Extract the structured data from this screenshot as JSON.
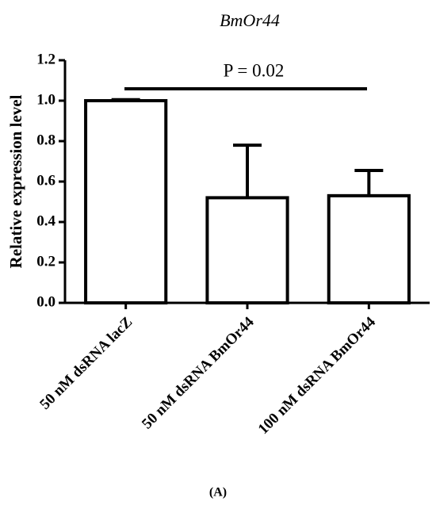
{
  "chart_data": {
    "type": "bar",
    "title": "BmOr44",
    "ylabel": "Relative expression level",
    "categories": [
      "50 nM dsRNA lacZ",
      "50 nM dsRNA BmOr44",
      "100 nM dsRNA BmOr44"
    ],
    "values": [
      1.0,
      0.52,
      0.53
    ],
    "errors": [
      0.005,
      0.26,
      0.125
    ],
    "color": "#ffffff",
    "ylim": [
      0,
      1.2
    ],
    "yticks": [
      {
        "value": 0,
        "label": "0.0"
      },
      {
        "value": 0.2,
        "label": "0.2"
      },
      {
        "value": 0.4,
        "label": "0.4"
      },
      {
        "value": 0.6,
        "label": "0.6"
      },
      {
        "value": 0.8,
        "label": "0.8"
      },
      {
        "value": 1,
        "label": "1.0"
      },
      {
        "value": 1.2,
        "label": "1.2"
      }
    ],
    "annotation": "P = 0.02",
    "panel_label": "(A)"
  }
}
